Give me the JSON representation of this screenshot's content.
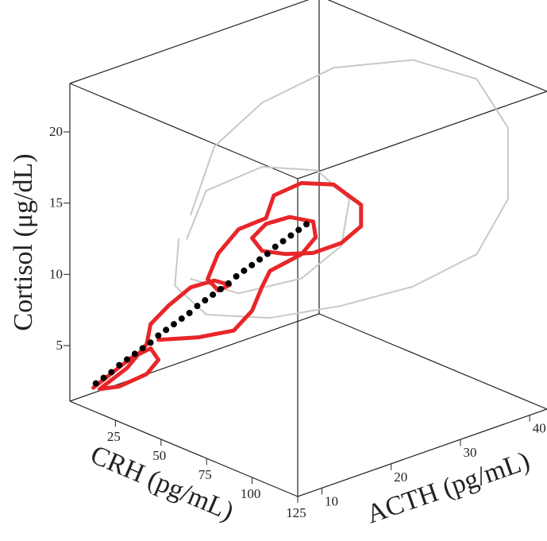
{
  "chart_data": {
    "type": "scatter3d",
    "x_label": "CRH (pg/mL)",
    "y_label": "ACTH (pg/mL)",
    "z_label": "Cortisol (μg/dL)",
    "xlim": [
      0,
      125
    ],
    "xticks": [
      25,
      50,
      75,
      100,
      125
    ],
    "ylim": [
      6.5,
      42.5
    ],
    "yticks": [
      10,
      20,
      30,
      40
    ],
    "zlim": [
      1.1,
      23.4
    ],
    "zticks": [
      5,
      10,
      15,
      20
    ],
    "series": [
      {
        "color": "#c8c8c8",
        "mode": "line",
        "x": [
          28.3,
          34.4,
          46.6,
          64.9,
          85.3,
          101.6,
          109.7,
          109.7,
          101.6,
          85.3,
          66.9,
          48.6,
          32.3,
          24.2,
          25.2
        ],
        "y": [
          16.5,
          18.3,
          22.0,
          27.5,
          33.6,
          38.5,
          40.9,
          40.9,
          38.5,
          33.6,
          28.1,
          22.6,
          17.7,
          15.3,
          15.6
        ],
        "z": [
          14.0,
          18.8,
          21.9,
          24.4,
          25.0,
          23.7,
          20.3,
          15.3,
          11.4,
          9.1,
          7.7,
          6.8,
          7.0,
          9.0,
          12.3
        ]
      },
      {
        "color": "#c8c8c8",
        "mode": "line",
        "x": [
          27.3,
          32.3,
          46.6,
          60.8,
          69.0,
          66.9,
          56.8,
          40.5,
          28.3
        ],
        "y": [
          16.2,
          17.7,
          22.0,
          26.2,
          28.7,
          28.1,
          25.0,
          20.2,
          16.5
        ],
        "z": [
          12.3,
          15.7,
          17.4,
          17.2,
          15.2,
          11.9,
          9.6,
          8.5,
          9.5
        ]
      },
      {
        "color": "#e8262a",
        "mode": "line",
        "x": [
          3.4,
          7.9,
          13.0,
          18.1,
          20.1,
          17.1,
          10.0,
          4.9,
          12.0,
          17.1,
          18.1,
          22.6,
          28.3,
          34.4,
          38.4,
          35.4,
          32.7,
          35.4,
          40.5,
          47.6,
          49.6,
          56.8,
          64.9,
          72.0,
          72.0,
          66.9,
          59.8,
          52.7,
          46.6,
          44.1,
          47.6,
          53.7,
          59.8,
          60.4,
          56.8,
          48.6,
          46.6,
          44.1,
          39.4,
          30.3,
          20.1
        ],
        "y": [
          9.0,
          10.4,
          11.9,
          13.4,
          14.0,
          13.1,
          11.0,
          9.5,
          11.6,
          13.1,
          13.4,
          14.8,
          16.5,
          18.3,
          19.5,
          18.6,
          17.8,
          18.6,
          20.2,
          22.3,
          22.9,
          25.0,
          27.5,
          29.6,
          29.6,
          28.1,
          25.9,
          23.8,
          22.0,
          21.2,
          22.3,
          24.1,
          25.9,
          26.1,
          25.0,
          22.6,
          22.0,
          21.2,
          19.8,
          17.1,
          14.0
        ],
        "z": [
          1.8,
          2.8,
          3.9,
          4.6,
          3.8,
          2.8,
          1.9,
          1.7,
          3.2,
          4.9,
          6.3,
          7.6,
          8.9,
          9.4,
          9.1,
          8.7,
          9.5,
          11.3,
          13.0,
          13.8,
          15.4,
          16.3,
          16.2,
          14.8,
          13.3,
          12.1,
          11.4,
          11.3,
          11.5,
          12.4,
          13.4,
          13.9,
          13.6,
          12.5,
          11.3,
          10.1,
          9.0,
          7.3,
          5.9,
          5.4,
          5.2
        ]
      },
      {
        "color": "#000000",
        "mode": "markers",
        "x": [
          4,
          6,
          8,
          10,
          12,
          14,
          16,
          18,
          20,
          22,
          24,
          26,
          28,
          30,
          32,
          34,
          36,
          38,
          40,
          42,
          44,
          46,
          48,
          50,
          52,
          54,
          56,
          58
        ],
        "y": [
          9.2,
          9.8,
          10.4,
          11,
          11.6,
          12.2,
          12.8,
          13.4,
          14,
          14.6,
          15.2,
          15.8,
          16.4,
          17,
          17.6,
          18.2,
          18.8,
          19.4,
          20,
          20.6,
          21.2,
          21.8,
          22.4,
          23,
          23.6,
          24.2,
          24.8,
          25.4
        ],
        "z": [
          2.1,
          2.5,
          2.9,
          3.4,
          3.8,
          4.2,
          4.6,
          5.0,
          5.5,
          5.9,
          6.3,
          6.7,
          7.1,
          7.6,
          8.0,
          8.4,
          8.8,
          9.2,
          9.7,
          10.1,
          10.5,
          10.9,
          11.3,
          11.8,
          12.2,
          12.6,
          13.0,
          13.4
        ]
      }
    ]
  }
}
